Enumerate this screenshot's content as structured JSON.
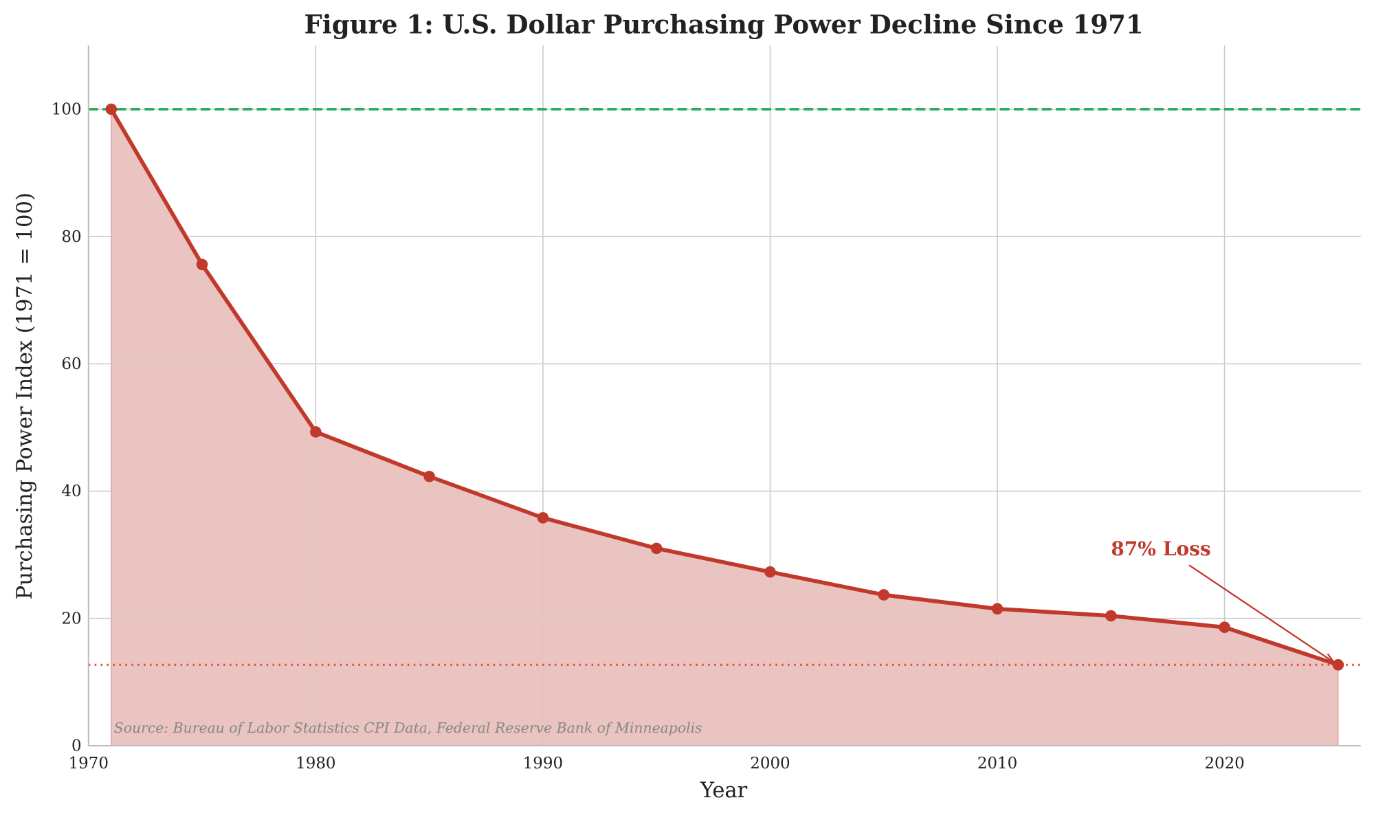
{
  "chart_data": {
    "type": "area",
    "title": "Figure 1: U.S. Dollar Purchasing Power Decline Since 1971",
    "xlabel": "Year",
    "ylabel": "Purchasing Power Index (1971 = 100)",
    "xlim": [
      1970,
      2026
    ],
    "ylim": [
      0,
      110
    ],
    "xticks": [
      1970,
      1980,
      1990,
      2000,
      2010,
      2020
    ],
    "yticks": [
      0,
      20,
      40,
      60,
      80,
      100
    ],
    "grid": true,
    "x": [
      1971,
      1975,
      1980,
      1985,
      1990,
      1995,
      2000,
      2005,
      2010,
      2015,
      2020,
      2025
    ],
    "series": [
      {
        "values": [
          100,
          75.6,
          49.3,
          42.3,
          35.8,
          31.0,
          27.3,
          23.7,
          21.5,
          20.4,
          18.6,
          12.7
        ],
        "color": "#c0392b",
        "fill": "#e8c1bd"
      }
    ],
    "reference_lines": [
      {
        "y": 100,
        "style": "dashed",
        "color": "#27ae60"
      },
      {
        "y": 12.7,
        "style": "dotted",
        "color": "#e74c3c"
      }
    ],
    "annotations": [
      {
        "text": "87% Loss",
        "x": 2015,
        "y": 31,
        "arrow_to": [
          2025,
          12.7
        ],
        "color": "#c0392b"
      }
    ],
    "source_note": "Source: Bureau of Labor Statistics CPI Data, Federal Reserve Bank of Minneapolis"
  }
}
